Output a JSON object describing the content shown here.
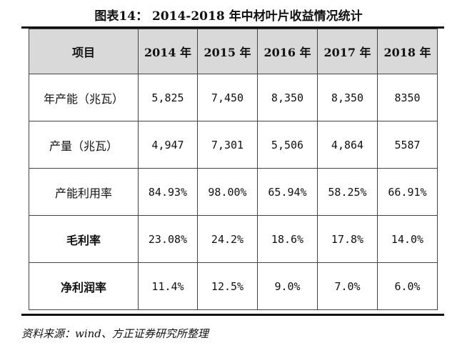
{
  "title": "图表14：  2014-2018 年中材叶片收益情况统计",
  "table": {
    "header": [
      "项目",
      "2014 年",
      "2015 年",
      "2016 年",
      "2017 年",
      "2018 年"
    ],
    "rows": [
      [
        "年产能（兆瓦）",
        "5,825",
        "7,450",
        "8,350",
        "8,350",
        "8350"
      ],
      [
        "产量（兆瓦）",
        "4,947",
        "7,301",
        "5,506",
        "4,864",
        "5587"
      ],
      [
        "产能利用率",
        "84.93%",
        "98.00%",
        "65.94%",
        "58.25%",
        "66.91%"
      ],
      [
        "毛利率",
        "23.08%",
        "24.2%",
        "18.6%",
        "17.8%",
        "14.0%"
      ],
      [
        "净利润率",
        "11.4%",
        "12.5%",
        "9.0%",
        "7.0%",
        "6.0%"
      ]
    ]
  },
  "source": "资料来源：wind、方正证券研究所整理"
}
